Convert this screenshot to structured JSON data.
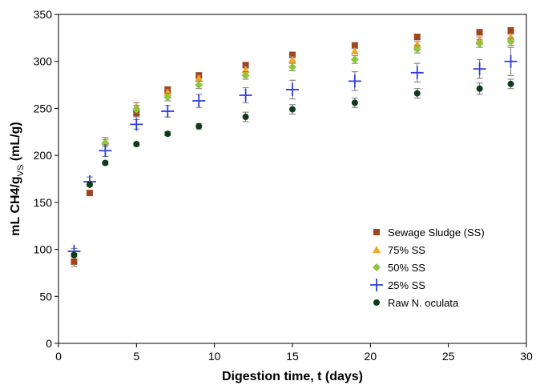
{
  "chart_data": {
    "type": "scatter",
    "xlabel": "Digestion time, t (days)",
    "ylabel": "mL CH4/gVS (mL/g)",
    "ylabel_main": "mL CH4/g",
    "ylabel_sub": "VS",
    "ylabel_tail": " (mL/g)",
    "xlim": [
      0,
      30
    ],
    "ylim": [
      0,
      350
    ],
    "xticks": [
      0,
      5,
      10,
      15,
      20,
      25,
      30
    ],
    "yticks": [
      0,
      50,
      100,
      150,
      200,
      250,
      300,
      350
    ],
    "grid": false,
    "error_bars": true,
    "legend_position": "bottom-right",
    "series": [
      {
        "name": "Sewage Sludge (SS)",
        "marker": "square",
        "color": "#a0461f",
        "x": [
          1,
          2,
          5,
          7,
          9,
          12,
          15,
          19,
          23,
          27,
          29
        ],
        "y": [
          87,
          160,
          245,
          270,
          285,
          296,
          307,
          317,
          326,
          331,
          333
        ],
        "err": [
          5,
          2,
          4,
          3,
          3,
          3,
          3,
          3,
          3,
          3,
          3
        ]
      },
      {
        "name": "75% SS",
        "marker": "triangle",
        "color": "#f5a623",
        "x": [
          3,
          5,
          7,
          9,
          12,
          15,
          19,
          23,
          27,
          29
        ],
        "y": [
          215,
          252,
          267,
          282,
          291,
          302,
          311,
          318,
          323,
          326
        ],
        "err": [
          4,
          4,
          3,
          3,
          3,
          3,
          3,
          3,
          3,
          3
        ]
      },
      {
        "name": "50% SS",
        "marker": "diamond",
        "color": "#8dc63f",
        "x": [
          3,
          5,
          7,
          9,
          12,
          15,
          19,
          23,
          27,
          29
        ],
        "y": [
          213,
          249,
          262,
          275,
          285,
          294,
          302,
          313,
          319,
          321
        ],
        "err": [
          4,
          4,
          4,
          4,
          4,
          4,
          4,
          4,
          4,
          4
        ]
      },
      {
        "name": "25% SS",
        "marker": "plus",
        "color": "#2f3fd8",
        "x": [
          1,
          2,
          3,
          5,
          7,
          9,
          12,
          15,
          19,
          23,
          27,
          29
        ],
        "y": [
          98,
          172,
          205,
          233,
          247,
          258,
          264,
          270,
          279,
          288,
          292,
          300
        ],
        "err": [
          3,
          5,
          6,
          5,
          6,
          7,
          8,
          10,
          10,
          10,
          10,
          15
        ]
      },
      {
        "name": "Raw N. oculata",
        "marker": "circle",
        "color": "#0d3b1c",
        "x": [
          1,
          2,
          3,
          5,
          7,
          9,
          12,
          15,
          19,
          23,
          27,
          29
        ],
        "y": [
          94,
          169,
          192,
          212,
          223,
          231,
          241,
          249,
          256,
          266,
          271,
          276
        ],
        "err": [
          2,
          2,
          2,
          2,
          2,
          3,
          5,
          5,
          5,
          5,
          6,
          5
        ]
      }
    ]
  }
}
